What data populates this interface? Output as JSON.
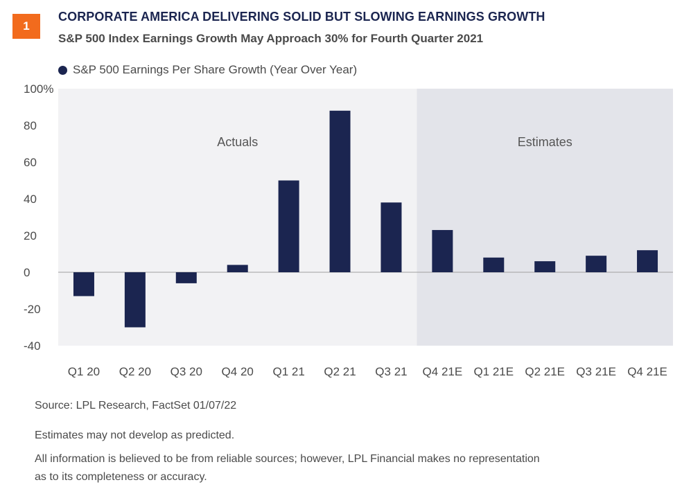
{
  "figure_number": "1",
  "title": "CORPORATE AMERICA DELIVERING SOLID BUT SLOWING EARNINGS GROWTH",
  "subtitle": "S&P 500 Index Earnings Growth May Approach 30% for Fourth Quarter 2021",
  "footer": {
    "source": "Source: LPL Research, FactSet  01/07/22",
    "note1": "Estimates may not develop as predicted.",
    "note2_line1": "All information is believed to be from reliable sources; however, LPL Financial makes no representation",
    "note2_line2": "as to its completeness or accuracy."
  },
  "chart_data": {
    "type": "bar",
    "categories": [
      "Q1 20",
      "Q2 20",
      "Q3 20",
      "Q4 20",
      "Q1 21",
      "Q2 21",
      "Q3 21",
      "Q4 21E",
      "Q1 21E",
      "Q2 21E",
      "Q3 21E",
      "Q4 21E"
    ],
    "series": [
      {
        "name": "S&P 500 Earnings Per Share Growth (Year Over Year)",
        "values": [
          -13,
          -30,
          -6,
          4,
          50,
          88,
          38,
          23,
          8,
          6,
          9,
          12
        ],
        "color": "#1b2550"
      }
    ],
    "ylim": [
      -40,
      100
    ],
    "yticks": [
      -40,
      -20,
      0,
      20,
      40,
      60,
      80,
      100
    ],
    "ytick_labels": [
      "-40",
      "-20",
      "0",
      "20",
      "40",
      "60",
      "80",
      "100%"
    ],
    "regions": [
      {
        "label": "Actuals",
        "from_index": 0,
        "to_index": 6,
        "color": "#f2f2f4"
      },
      {
        "label": "Estimates",
        "from_index": 7,
        "to_index": 11,
        "color": "#e3e4ea"
      }
    ],
    "grid": false,
    "legend_position": "top-left",
    "xlabel": "",
    "ylabel": ""
  }
}
